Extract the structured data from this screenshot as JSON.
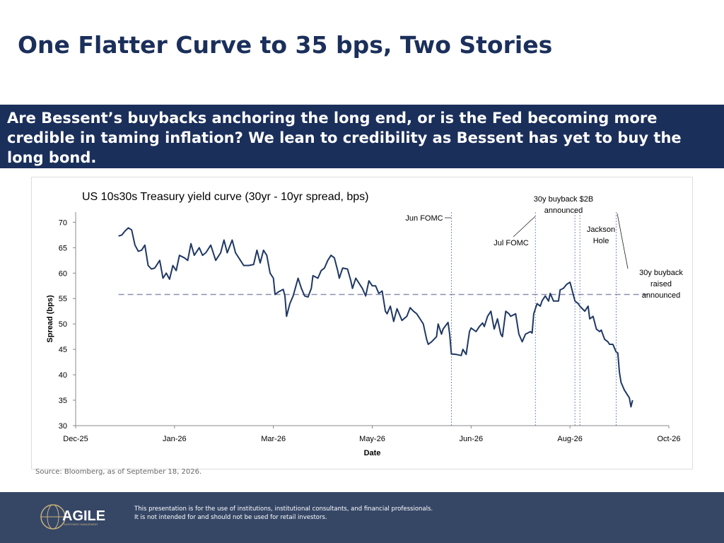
{
  "title": "One Flatter Curve to 35 bps, Two Stories",
  "subtitle": "Are Bessent’s buybacks anchoring the long end, or is the Fed becoming more credible in taming inflation? We lean to credibility as Bessent has yet to buy the long bond.",
  "source": "Source: Bloomberg, as of September 18, 2026.",
  "footer": {
    "logo": "AGILE",
    "logo_sub": "INVESTMENT MANAGEMENT",
    "disclaimer": [
      "This presentation is for the use of institutions, institutional consultants, and financial professionals.",
      "It is not intended for and should not be used for retail investors."
    ]
  },
  "chart_data": {
    "type": "line",
    "title": "US 10s30s Treasury yield curve (30yr - 10yr spread, bps)",
    "xlabel": "Date",
    "ylabel": "Spread (bps)",
    "xlim": [
      0,
      360
    ],
    "xticks": [
      {
        "value": 0,
        "label": "Dec-25"
      },
      {
        "value": 60,
        "label": "Jan-26"
      },
      {
        "value": 120,
        "label": "Mar-26"
      },
      {
        "value": 180,
        "label": "May-26"
      },
      {
        "value": 240,
        "label": "Jun-26"
      },
      {
        "value": 300,
        "label": "Aug-26"
      },
      {
        "value": 360,
        "label": "Oct-26"
      }
    ],
    "ylim": [
      30,
      72
    ],
    "yticks": [
      30,
      35,
      40,
      45,
      50,
      55,
      60,
      65,
      70
    ],
    "reference_line": 55.8,
    "reference_color": "#8a8fb0",
    "x": [
      26,
      28,
      30,
      32,
      34,
      36,
      38,
      40,
      42,
      44,
      46,
      48,
      51,
      53,
      55,
      57,
      59,
      61,
      63,
      66,
      68,
      70,
      72,
      75,
      77,
      79,
      82,
      85,
      88,
      90,
      92,
      95,
      97,
      100,
      102,
      105,
      108,
      110,
      112,
      114,
      116,
      118,
      120,
      121,
      123,
      126,
      127,
      128,
      130,
      132,
      135,
      137,
      139,
      141,
      143,
      144,
      147,
      149,
      151,
      153,
      155,
      157,
      159,
      160,
      162,
      165,
      167,
      168,
      170,
      172,
      174,
      176,
      178,
      180,
      182,
      184,
      186,
      188,
      189,
      191,
      193,
      195,
      197,
      198,
      201,
      203,
      205,
      207,
      209,
      211,
      213,
      214,
      216,
      219,
      220,
      222,
      223,
      226,
      227,
      228,
      231,
      234,
      235,
      237,
      239,
      240,
      243,
      245,
      247,
      248,
      250,
      252,
      254,
      256,
      258,
      259,
      261,
      263,
      264,
      267,
      269,
      271,
      273,
      276,
      277,
      278,
      280,
      282,
      283,
      285,
      287,
      288,
      290,
      293,
      294,
      296,
      298,
      300,
      301,
      303,
      305,
      306,
      309,
      311,
      312,
      314,
      316,
      318,
      319,
      321,
      323,
      324,
      326,
      328,
      329,
      330,
      331,
      333,
      335,
      336,
      337,
      338
    ],
    "series": [
      {
        "color": "#1f3864",
        "values": [
          67.3,
          67.5,
          68.3,
          68.9,
          68.5,
          65.5,
          64.3,
          64.5,
          65.5,
          61.5,
          60.8,
          61,
          62.5,
          59,
          60,
          58.8,
          61.5,
          60.5,
          63.5,
          63,
          62.5,
          65.8,
          63.5,
          65,
          63.5,
          64,
          65.5,
          62.5,
          64,
          66.5,
          64,
          66.5,
          64,
          62.5,
          61.5,
          61.5,
          61.7,
          64.5,
          62,
          64.5,
          63.5,
          60,
          59,
          55.8,
          56.3,
          56.8,
          55.5,
          51.5,
          54,
          55.5,
          59,
          57,
          55.5,
          55.3,
          57,
          59.5,
          59,
          60.5,
          61,
          62.5,
          63.5,
          63,
          60.5,
          59,
          61,
          60.8,
          58.5,
          57,
          59,
          58,
          57,
          55.5,
          58.5,
          57.5,
          57.5,
          56,
          56.5,
          52.5,
          52,
          53.5,
          50.5,
          53,
          51.5,
          50.7,
          51.5,
          53.2,
          52.5,
          52,
          51,
          50,
          47,
          46,
          46.5,
          47.5,
          50,
          48,
          49,
          50.3,
          48,
          44.1,
          44,
          43.8,
          45,
          44,
          48.5,
          49.2,
          48.5,
          49.5,
          50.2,
          49.5,
          51.5,
          52.5,
          49,
          51,
          48,
          47.5,
          52.5,
          52,
          51.5,
          52,
          48,
          46.5,
          48,
          48.5,
          48.2,
          52,
          54,
          53.5,
          54.5,
          55.5,
          54.5,
          56,
          54.5,
          54.5,
          56.7,
          57,
          57.8,
          58.2,
          57,
          54.5,
          54,
          53.5,
          52.5,
          53.5,
          51,
          51.5,
          49,
          48.5,
          48.8,
          47,
          46.5,
          46,
          46,
          44.5,
          44.3,
          40.5,
          38.5,
          37,
          36,
          35.5,
          33.7,
          35
        ]
      }
    ],
    "annotations": [
      {
        "lines": [
          "Jun FOMC"
        ],
        "x": 228
      },
      {
        "lines": [
          "Jul FOMC"
        ],
        "x": 279
      },
      {
        "lines": [
          "30y buyback $2B",
          "announced"
        ],
        "x": 303
      },
      {
        "lines": [
          "Jackson",
          "Hole"
        ],
        "x": 306
      },
      {
        "lines": [
          "30y buyback",
          "raised",
          "announced"
        ],
        "x": 328
      }
    ],
    "event_color": "#5a6fb0"
  }
}
